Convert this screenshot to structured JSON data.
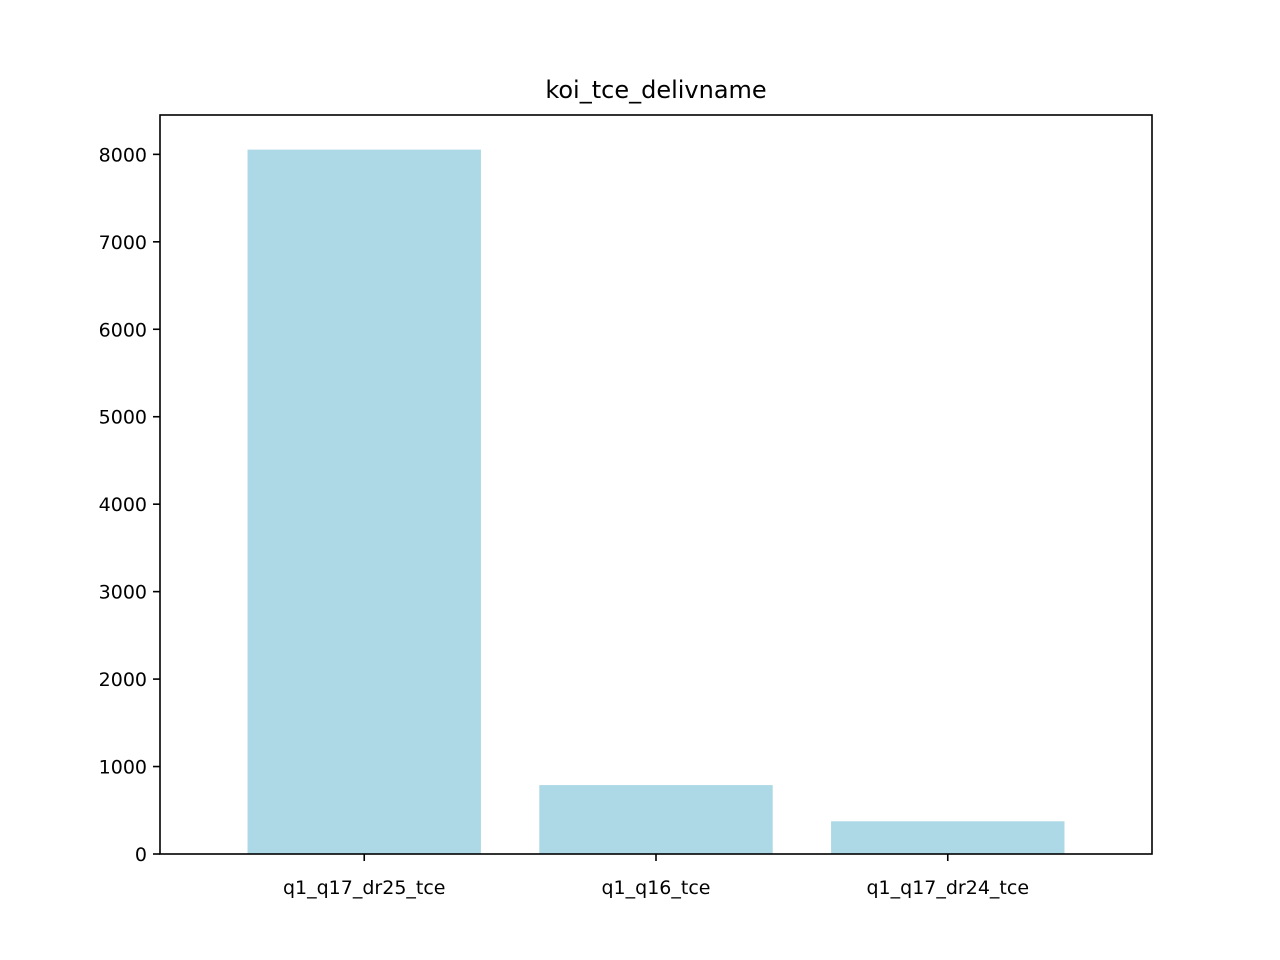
{
  "chart_data": {
    "type": "bar",
    "title": "koi_tce_delivname",
    "xlabel": "",
    "ylabel": "",
    "categories": [
      "q1_q17_dr25_tce",
      "q1_q16_tce",
      "q1_q17_dr24_tce"
    ],
    "values": [
      8054,
      788,
      374
    ],
    "ylim": [
      0,
      8450
    ],
    "yticks": [
      0,
      1000,
      2000,
      3000,
      4000,
      5000,
      6000,
      7000,
      8000
    ],
    "grid": false,
    "legend": "none",
    "bar_color": "#add8e6"
  }
}
